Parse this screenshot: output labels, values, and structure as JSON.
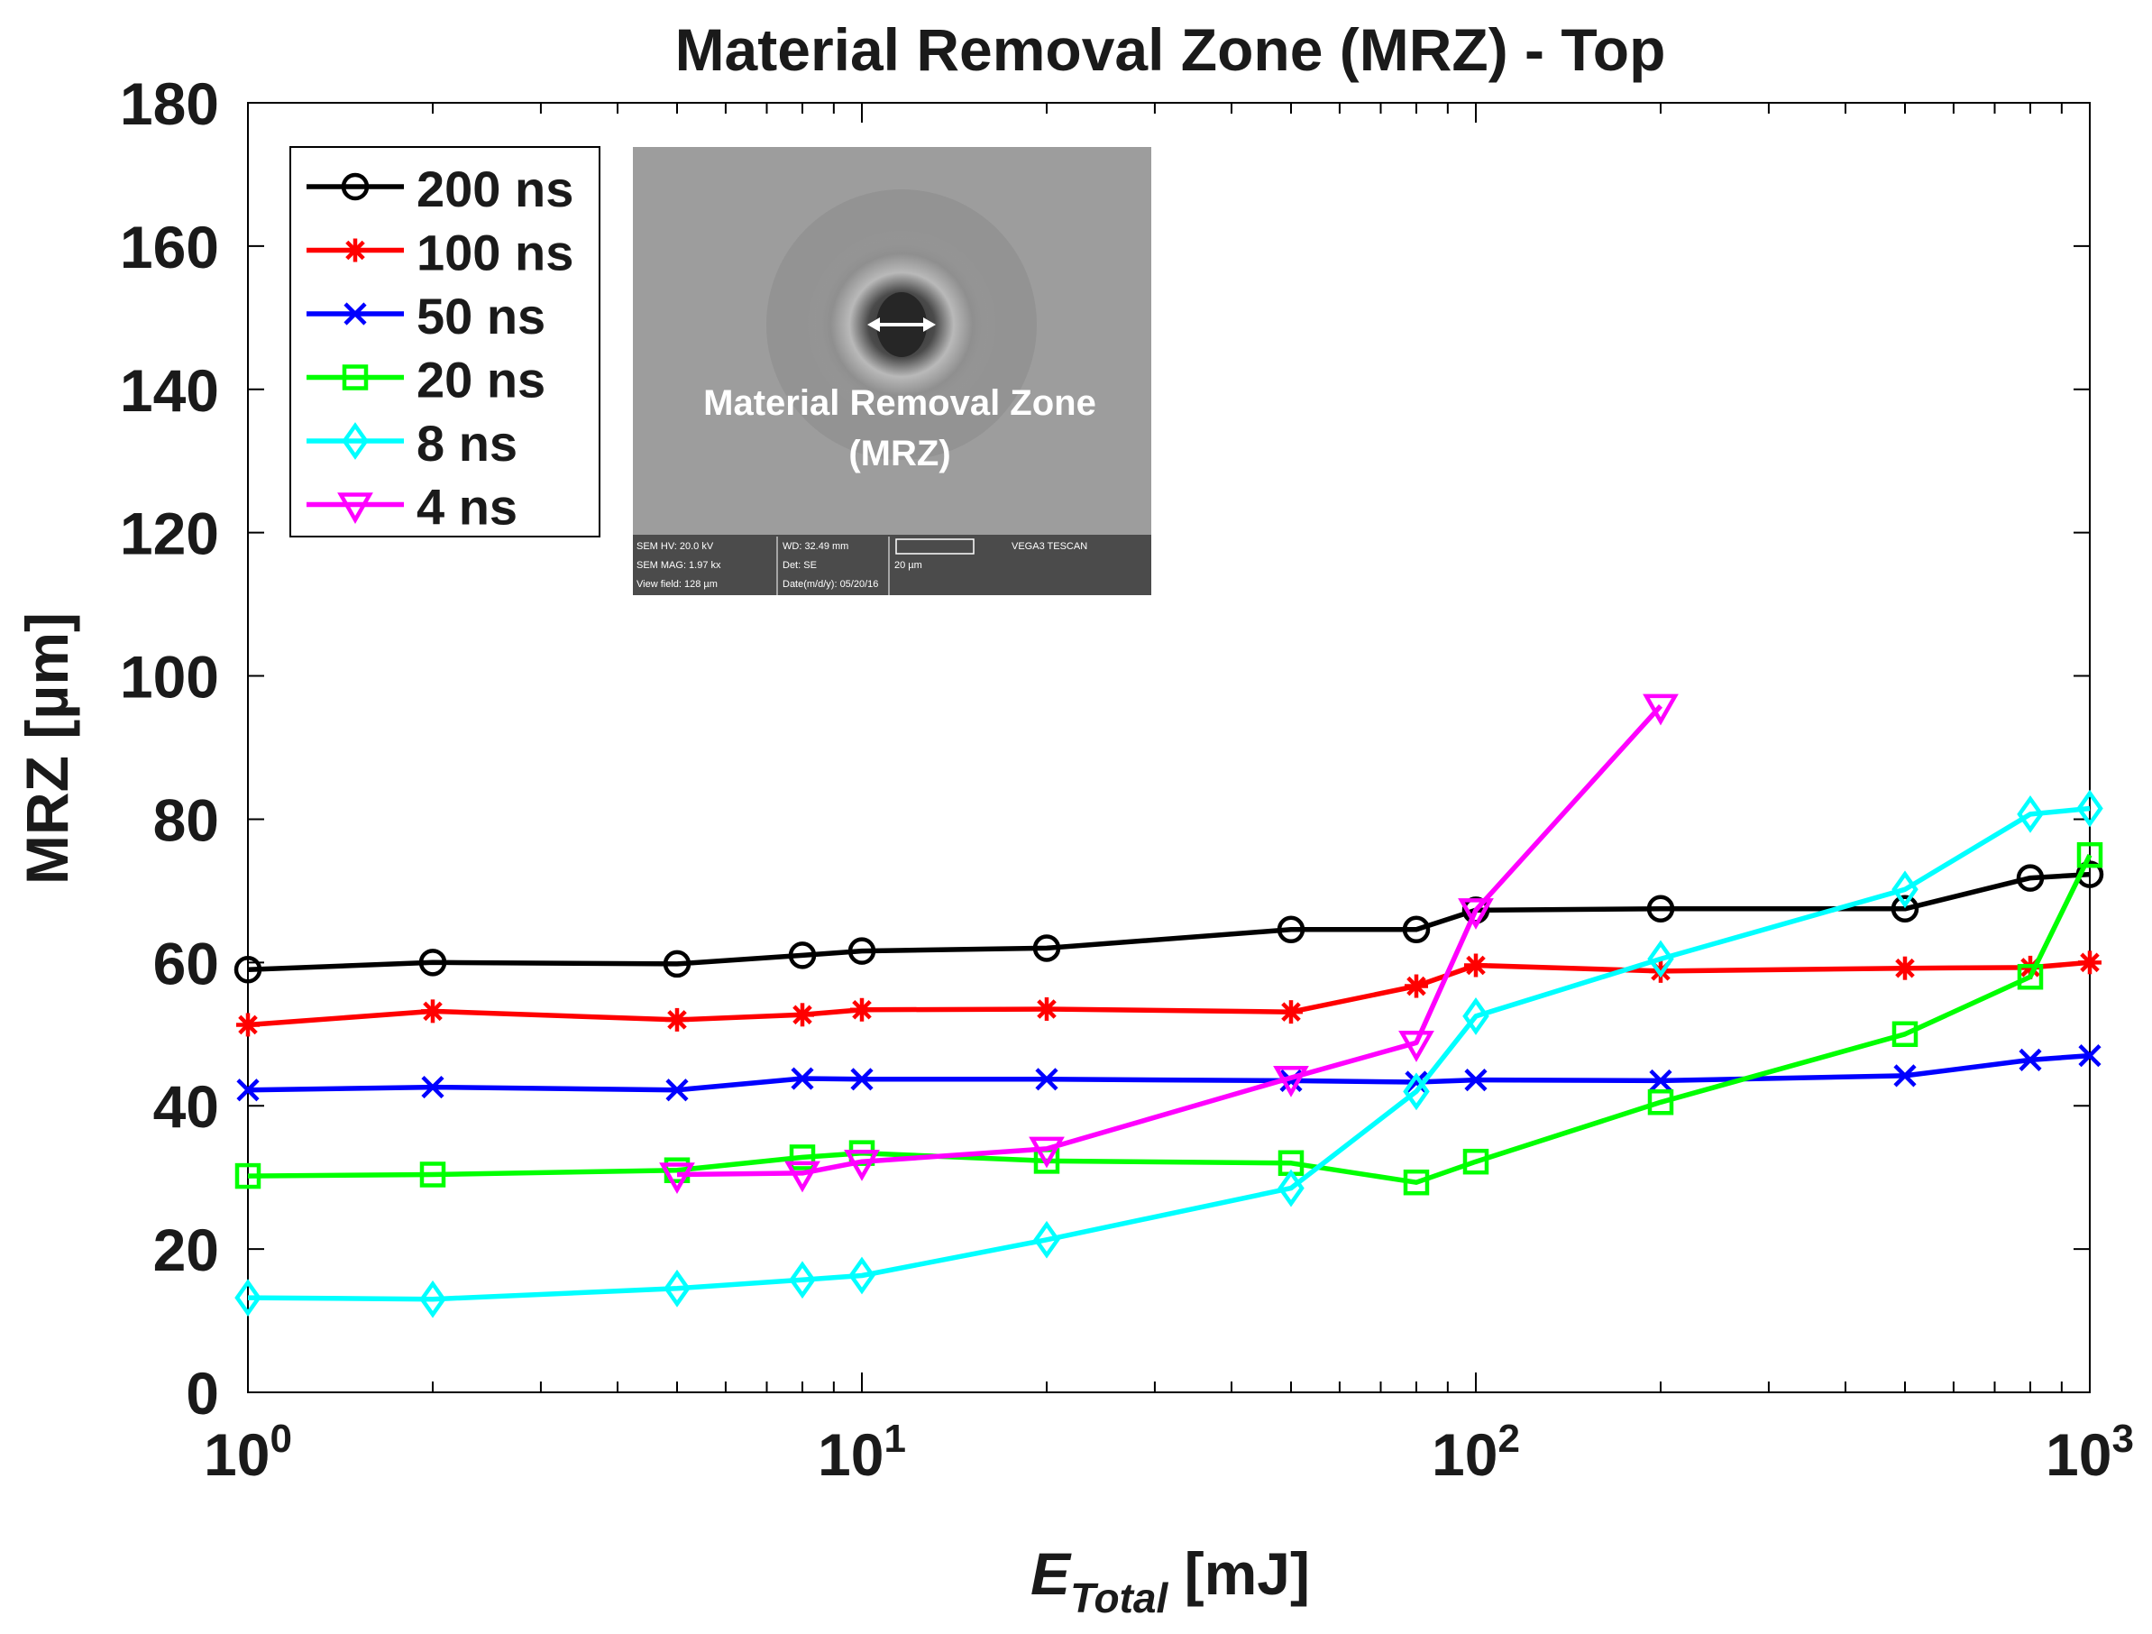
{
  "chart_data": {
    "type": "line",
    "title": "Material Removal Zone (MRZ) - Top",
    "ylabel": "MRZ [µm]",
    "xlabel": {
      "symbol": "E",
      "subscript": "Total",
      "unit": " [mJ]"
    },
    "xscale": "log",
    "xlim": [
      1,
      1000
    ],
    "ylim": [
      0,
      180
    ],
    "xticks": [
      {
        "value": 1,
        "base": "10",
        "exp": "0"
      },
      {
        "value": 10,
        "base": "10",
        "exp": "1"
      },
      {
        "value": 100,
        "base": "10",
        "exp": "2"
      },
      {
        "value": 1000,
        "base": "10",
        "exp": "3"
      }
    ],
    "yticks": [
      0,
      20,
      40,
      60,
      80,
      100,
      120,
      140,
      160,
      180
    ],
    "legend_position": "top-left",
    "series": [
      {
        "name": "200 ns",
        "color": "#000000",
        "marker": "circle",
        "x": [
          1,
          2,
          5,
          8,
          10,
          20,
          50,
          80,
          100,
          200,
          500,
          800,
          1000
        ],
        "y": [
          59,
          60,
          59.8,
          61,
          61.6,
          62,
          64.6,
          64.6,
          67.3,
          67.5,
          67.5,
          71.8,
          72.3
        ]
      },
      {
        "name": "100 ns",
        "color": "#ff0000",
        "marker": "asterisk",
        "x": [
          1,
          2,
          5,
          8,
          10,
          20,
          50,
          80,
          100,
          200,
          500,
          800,
          1000
        ],
        "y": [
          51.3,
          53.2,
          52,
          52.7,
          53.4,
          53.5,
          53.1,
          56.7,
          59.6,
          58.8,
          59.2,
          59.3,
          60
        ]
      },
      {
        "name": "50 ns",
        "color": "#0000ff",
        "marker": "x",
        "x": [
          1,
          2,
          5,
          8,
          10,
          20,
          50,
          80,
          100,
          200,
          500,
          800,
          1000
        ],
        "y": [
          42.2,
          42.6,
          42.2,
          43.8,
          43.7,
          43.7,
          43.5,
          43.3,
          43.6,
          43.5,
          44.2,
          46.4,
          47
        ]
      },
      {
        "name": "20 ns",
        "color": "#00ff00",
        "marker": "square",
        "x": [
          1,
          2,
          5,
          8,
          10,
          20,
          50,
          80,
          100,
          200,
          500,
          800,
          1000
        ],
        "y": [
          30.2,
          30.4,
          31,
          32.8,
          33.4,
          32.3,
          32,
          29.3,
          32.2,
          40.5,
          50,
          58,
          75
        ]
      },
      {
        "name": "8 ns",
        "color": "#00ffff",
        "marker": "diamond",
        "x": [
          1,
          2,
          5,
          8,
          10,
          20,
          50,
          80,
          100,
          200,
          500,
          800,
          1000
        ],
        "y": [
          13.2,
          13,
          14.5,
          15.7,
          16.3,
          21.3,
          28.5,
          42,
          52.5,
          60.5,
          70.2,
          80.7,
          81.5
        ]
      },
      {
        "name": "4 ns",
        "color": "#ff00ff",
        "marker": "triangle-down",
        "x": [
          5,
          8,
          10,
          20,
          50,
          80,
          100,
          200
        ],
        "y": [
          30.4,
          30.6,
          32.2,
          34,
          43.9,
          48.8,
          67.3,
          95.8
        ]
      }
    ],
    "inset": {
      "caption_line1": "Material Removal Zone",
      "caption_line2": "(MRZ)",
      "info_cells": [
        "SEM HV: 20.0 kV",
        "WD: 32.49 mm",
        "",
        "VEGA3 TESCAN",
        "SEM MAG: 1.97 kx",
        "Det: SE",
        "20 µm",
        "",
        "View field: 128 µm",
        "Date(m/d/y): 05/20/16",
        "",
        ""
      ]
    }
  }
}
